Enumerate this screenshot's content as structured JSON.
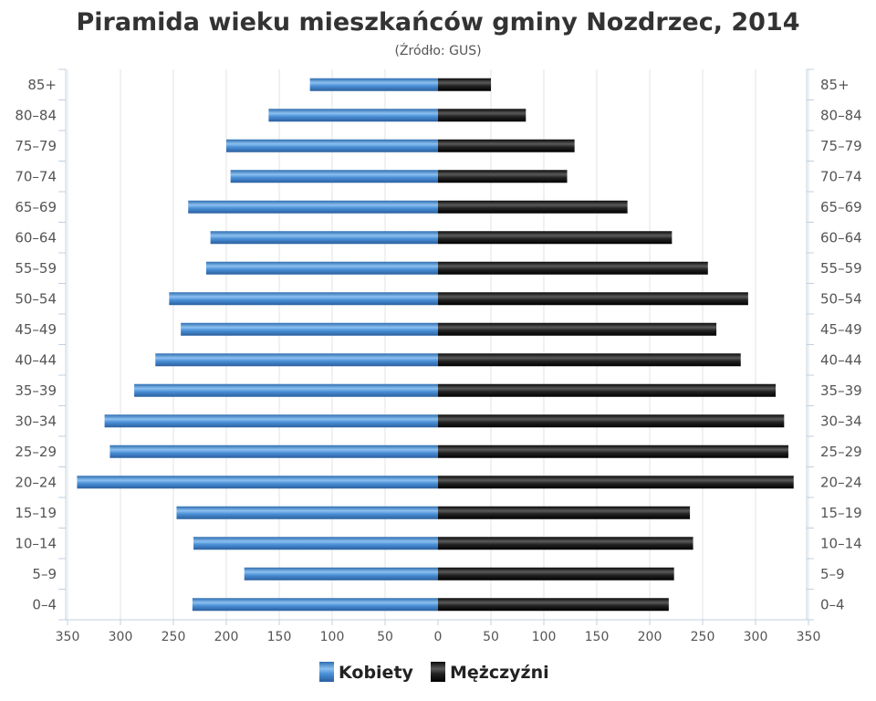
{
  "chart_data": {
    "type": "bar",
    "orientation": "horizontal-population-pyramid",
    "title": "Piramida wieku mieszkańców gminy Nozdrzec, 2014",
    "subtitle": "(Źródło: GUS)",
    "categories": [
      "85+",
      "80-84",
      "75-79",
      "70-74",
      "65-69",
      "60-64",
      "55-59",
      "50-54",
      "45-49",
      "40-44",
      "35-39",
      "30-34",
      "25-29",
      "20-24",
      "15-19",
      "10-14",
      "5-9",
      "0-4"
    ],
    "category_labels": [
      "85+",
      "80–84",
      "75–79",
      "70–74",
      "65–69",
      "60–64",
      "55–59",
      "50–54",
      "45–49",
      "40–44",
      "35–39",
      "30–34",
      "25–29",
      "20–24",
      "15–19",
      "10–14",
      "5–9",
      "0–4"
    ],
    "series": [
      {
        "name": "Kobiety",
        "side": "left",
        "color": "#3d7fc4",
        "values": [
          121,
          160,
          200,
          196,
          236,
          215,
          219,
          254,
          243,
          267,
          287,
          315,
          310,
          341,
          247,
          231,
          183,
          232
        ]
      },
      {
        "name": "Mężczyźni",
        "side": "right",
        "color": "#1a1a1a",
        "values": [
          50,
          83,
          129,
          122,
          179,
          221,
          255,
          293,
          263,
          286,
          319,
          327,
          331,
          336,
          238,
          241,
          223,
          218
        ]
      }
    ],
    "xlim": [
      -350,
      350
    ],
    "x_ticks": [
      -350,
      -300,
      -250,
      -200,
      -150,
      -100,
      -50,
      0,
      50,
      100,
      150,
      200,
      250,
      300,
      350
    ],
    "x_tick_labels": [
      "350",
      "300",
      "250",
      "200",
      "150",
      "100",
      "50",
      "0",
      "50",
      "100",
      "150",
      "200",
      "250",
      "300",
      "350"
    ],
    "grid": "vertical",
    "legend_position": "bottom-center"
  }
}
